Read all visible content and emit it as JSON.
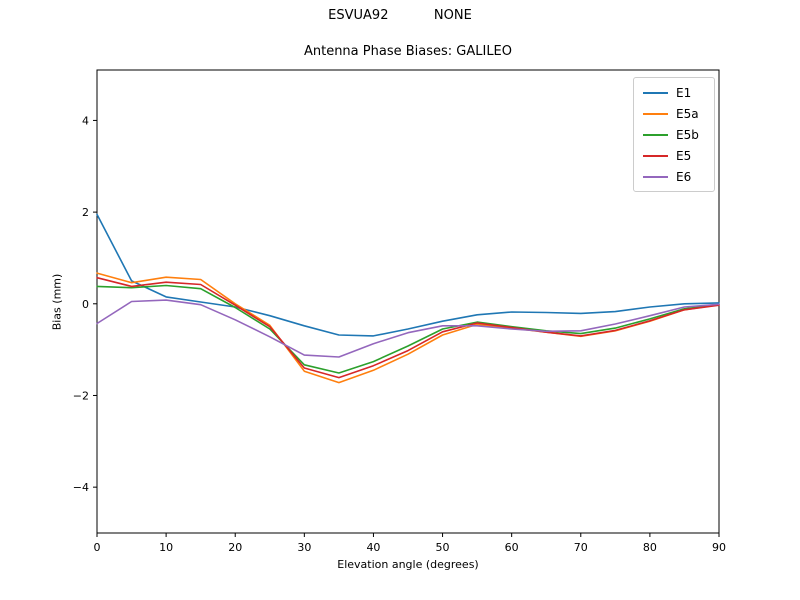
{
  "figure": {
    "suptitle": "ESVUA92           NONE"
  },
  "chart_data": {
    "type": "line",
    "title": "Antenna Phase Biases: GALILEO",
    "xlabel": "Elevation angle (degrees)",
    "ylabel": "Bias (mm)",
    "xlim": [
      0,
      90
    ],
    "ylim": [
      -5.0,
      5.1
    ],
    "xticks": [
      0,
      10,
      20,
      30,
      40,
      50,
      60,
      70,
      80,
      90
    ],
    "xtick_labels": [
      "0",
      "10",
      "20",
      "30",
      "40",
      "50",
      "60",
      "70",
      "80",
      "90"
    ],
    "yticks": [
      -4,
      -2,
      0,
      2,
      4
    ],
    "ytick_labels": [
      "−4",
      "−2",
      "0",
      "2",
      "4"
    ],
    "grid": false,
    "legend_position": "upper right",
    "x": [
      0,
      5,
      10,
      15,
      20,
      25,
      30,
      35,
      40,
      45,
      50,
      55,
      60,
      65,
      70,
      75,
      80,
      85,
      90
    ],
    "series": [
      {
        "name": "E1",
        "color": "#1f77b4",
        "values": [
          1.95,
          0.5,
          0.15,
          0.04,
          -0.07,
          -0.26,
          -0.48,
          -0.68,
          -0.7,
          -0.55,
          -0.38,
          -0.24,
          -0.18,
          -0.19,
          -0.21,
          -0.17,
          -0.07,
          0.0,
          0.02
        ]
      },
      {
        "name": "E5a",
        "color": "#ff7f0e",
        "values": [
          0.67,
          0.46,
          0.58,
          0.53,
          0.0,
          -0.47,
          -1.47,
          -1.72,
          -1.45,
          -1.1,
          -0.68,
          -0.45,
          -0.53,
          -0.62,
          -0.71,
          -0.59,
          -0.38,
          -0.13,
          -0.02
        ]
      },
      {
        "name": "E5b",
        "color": "#2ca02c",
        "values": [
          0.38,
          0.35,
          0.4,
          0.33,
          -0.08,
          -0.55,
          -1.33,
          -1.51,
          -1.26,
          -0.92,
          -0.55,
          -0.4,
          -0.5,
          -0.59,
          -0.65,
          -0.53,
          -0.33,
          -0.11,
          -0.02
        ]
      },
      {
        "name": "E5",
        "color": "#d62728",
        "values": [
          0.57,
          0.38,
          0.47,
          0.42,
          -0.03,
          -0.5,
          -1.4,
          -1.61,
          -1.35,
          -1.02,
          -0.61,
          -0.42,
          -0.52,
          -0.62,
          -0.7,
          -0.58,
          -0.37,
          -0.13,
          -0.03
        ]
      },
      {
        "name": "E6",
        "color": "#9467bd",
        "values": [
          -0.43,
          0.05,
          0.08,
          -0.02,
          -0.35,
          -0.72,
          -1.12,
          -1.16,
          -0.87,
          -0.63,
          -0.48,
          -0.48,
          -0.55,
          -0.6,
          -0.59,
          -0.44,
          -0.26,
          -0.07,
          -0.01
        ]
      }
    ]
  }
}
